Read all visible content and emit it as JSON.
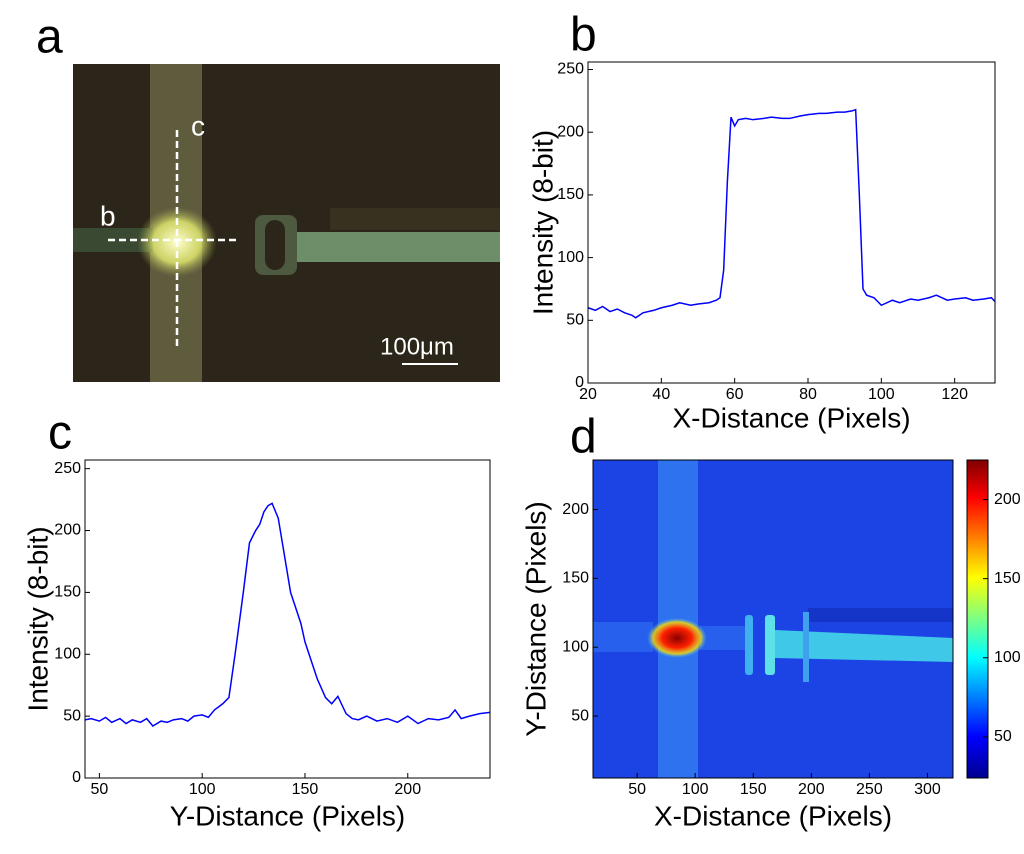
{
  "image_a": {
    "panel_label": "a",
    "annotations": [
      "b",
      "c"
    ],
    "scale_bar": "100μm"
  },
  "chart_data": [
    {
      "type": "line",
      "panel_label": "b",
      "x_label": "X-Distance (Pixels)",
      "y_label": "Intensity (8-bit)",
      "xlim": [
        20,
        131
      ],
      "ylim": [
        0,
        256
      ],
      "xticks": [
        20,
        40,
        60,
        80,
        100,
        120
      ],
      "yticks": [
        0,
        50,
        100,
        150,
        200,
        250
      ],
      "series": [
        {
          "color": "#0000ff",
          "x": [
            20,
            22,
            24,
            26,
            28,
            30,
            32,
            33,
            35,
            38,
            40,
            43,
            45,
            48,
            50,
            53,
            55,
            56,
            57,
            58,
            59,
            60,
            61,
            63,
            65,
            68,
            70,
            73,
            75,
            78,
            80,
            83,
            85,
            88,
            90,
            92,
            93,
            94,
            95,
            96,
            98,
            100,
            103,
            105,
            108,
            110,
            113,
            115,
            118,
            120,
            123,
            125,
            128,
            130,
            131
          ],
          "values": [
            60,
            58,
            61,
            57,
            59,
            56,
            54,
            52,
            56,
            58,
            60,
            62,
            64,
            62,
            63,
            64,
            66,
            68,
            90,
            160,
            212,
            205,
            210,
            211,
            210,
            211,
            212,
            211,
            211,
            213,
            214,
            215,
            215,
            216,
            216,
            217,
            218,
            150,
            75,
            70,
            68,
            62,
            66,
            64,
            67,
            66,
            68,
            70,
            66,
            67,
            68,
            66,
            67,
            68,
            65
          ]
        }
      ]
    },
    {
      "type": "line",
      "panel_label": "c",
      "x_label": "Y-Distance (Pixels)",
      "y_label": "Intensity (8-bit)",
      "xlim": [
        43,
        240
      ],
      "ylim": [
        0,
        257
      ],
      "xticks": [
        50,
        100,
        150,
        200
      ],
      "yticks": [
        0,
        50,
        100,
        150,
        200,
        250
      ],
      "series": [
        {
          "color": "#0000ff",
          "x": [
            43,
            46,
            50,
            53,
            56,
            60,
            63,
            66,
            70,
            73,
            76,
            80,
            83,
            86,
            90,
            93,
            96,
            100,
            103,
            106,
            110,
            113,
            116,
            120,
            123,
            126,
            128,
            130,
            132,
            134,
            135,
            137,
            139,
            141,
            143,
            145,
            148,
            150,
            153,
            156,
            160,
            163,
            166,
            170,
            173,
            176,
            180,
            185,
            190,
            195,
            200,
            205,
            210,
            215,
            220,
            223,
            226,
            230,
            235,
            240
          ],
          "values": [
            47,
            48,
            46,
            49,
            45,
            48,
            44,
            47,
            45,
            48,
            42,
            46,
            45,
            47,
            48,
            46,
            50,
            51,
            49,
            55,
            60,
            65,
            100,
            150,
            190,
            200,
            205,
            215,
            220,
            222,
            218,
            210,
            190,
            170,
            150,
            140,
            125,
            110,
            95,
            80,
            65,
            60,
            66,
            52,
            48,
            47,
            50,
            46,
            48,
            45,
            50,
            44,
            48,
            47,
            49,
            55,
            48,
            50,
            52,
            53
          ]
        }
      ]
    },
    {
      "type": "heatmap",
      "panel_label": "d",
      "x_label": "X-Distance (Pixels)",
      "y_label": "Y-Distance (Pixels)",
      "xlim": [
        12,
        322
      ],
      "ylim": [
        5,
        236
      ],
      "xticks": [
        50,
        100,
        150,
        200,
        250,
        300
      ],
      "yticks": [
        50,
        100,
        150,
        200
      ],
      "clim": [
        24,
        225
      ],
      "cticks": [
        50,
        100,
        150,
        200
      ]
    }
  ]
}
